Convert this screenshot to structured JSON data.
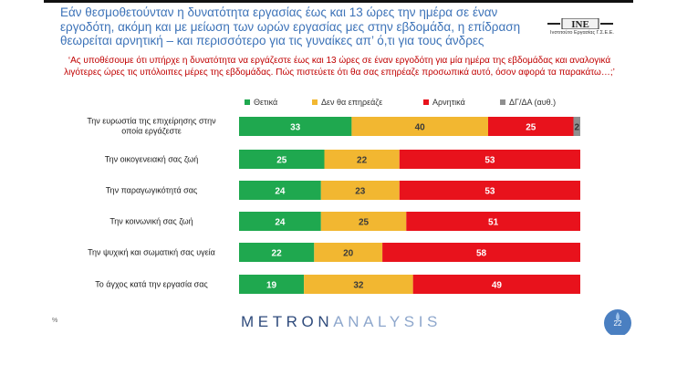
{
  "header": {
    "title": "Εάν θεσμοθετούνταν η δυνατότητα εργασίας έως και 13 ώρες την ημέρα σε έναν εργοδότη, ακόμη και με μείωση των ωρών εργασίας μες στην εβδομάδα, η επίδραση θεωρείται αρνητική – και περισσότερο για τις γυναίκες απ’ ό,τι για τους άνδρες",
    "logo_text": "ΙΝΕ",
    "logo_subtext": "Ινστιτούτο Εργασίας Γ.Σ.Ε.Ε."
  },
  "question": "‘Ας υποθέσουμε ότι υπήρχε η δυνατότητα να εργάζεστε έως και 13 ώρες σε έναν εργοδότη για μία ημέρα της εβδομάδας και αναλογικά λιγότερες ώρες τις υπόλοιπες μέρες της εβδομάδας. Πώς πιστεύετε ότι θα σας επηρέαζε προσωπικά αυτό, όσον αφορά τα παρακάτω…;’",
  "footer": {
    "brand_dark": "METRON",
    "brand_light": "ANALYSIS",
    "page_number": "22",
    "corner_mark": "%"
  },
  "chart_data": {
    "type": "bar",
    "orientation": "horizontal",
    "stacked": true,
    "legend_position": "top",
    "categories": [
      "Την ευρωστία της επιχείρησης στην οποία εργάζεστε",
      "Την οικογενειακή σας ζωή",
      "Την παραγωγικότητά σας",
      "Την κοινωνική σας ζωή",
      "Την ψυχική και σωματική σας υγεία",
      "Το άγχος κατά την εργασία σας"
    ],
    "series": [
      {
        "name": "Θετικά",
        "color": "#1fa84f",
        "values": [
          33,
          25,
          24,
          24,
          22,
          19
        ]
      },
      {
        "name": "Δεν θα επηρεάζε",
        "color": "#f2b731",
        "values": [
          40,
          22,
          23,
          25,
          20,
          32
        ]
      },
      {
        "name": "Αρνητικά",
        "color": "#e8121c",
        "values": [
          25,
          53,
          53,
          51,
          58,
          49
        ]
      },
      {
        "name": "ΔΓ/ΔΑ (αυθ.)",
        "color": "#8f8f8f",
        "values": [
          2,
          0,
          0,
          0,
          0,
          0
        ]
      }
    ],
    "xlim": [
      0,
      100
    ]
  }
}
